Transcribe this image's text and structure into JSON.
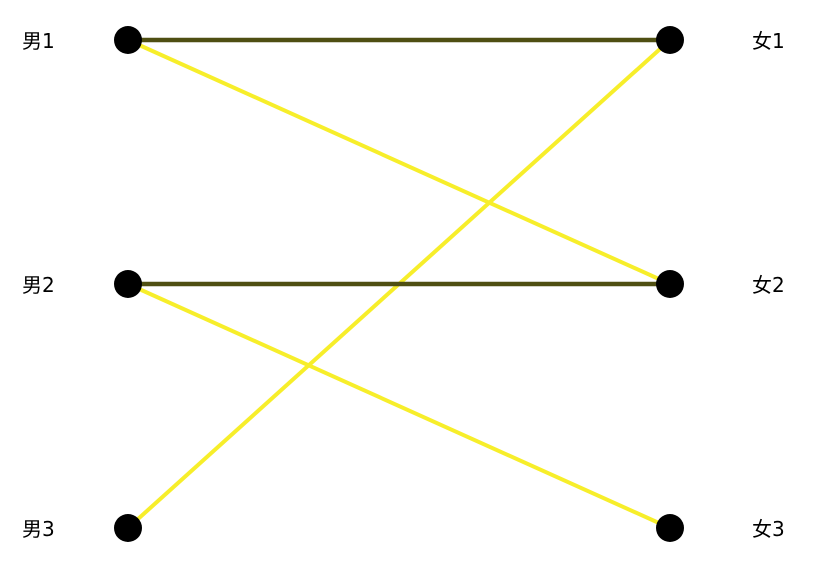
{
  "graph": {
    "left_nodes": [
      {
        "id": "m1",
        "label": "男1"
      },
      {
        "id": "m2",
        "label": "男2"
      },
      {
        "id": "m3",
        "label": "男3"
      }
    ],
    "right_nodes": [
      {
        "id": "f1",
        "label": "女1"
      },
      {
        "id": "f2",
        "label": "女2"
      },
      {
        "id": "f3",
        "label": "女3"
      }
    ],
    "edges": [
      {
        "from": "m1",
        "to": "f2",
        "type": "candidate"
      },
      {
        "from": "m2",
        "to": "f3",
        "type": "candidate"
      },
      {
        "from": "m3",
        "to": "f1",
        "type": "candidate"
      },
      {
        "from": "m1",
        "to": "f1",
        "type": "matched"
      },
      {
        "from": "m2",
        "to": "f2",
        "type": "matched"
      }
    ],
    "colors": {
      "candidate": "#f7ee2a",
      "matched": "#4f4f12",
      "node": "#000000"
    }
  }
}
